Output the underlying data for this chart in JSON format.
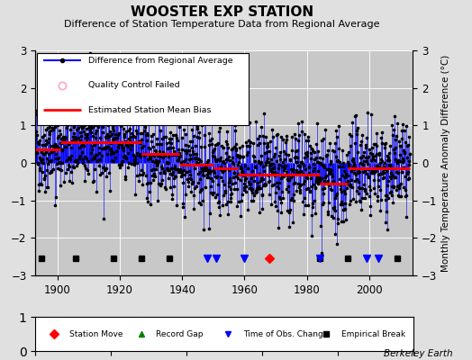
{
  "title": "WOOSTER EXP STATION",
  "subtitle": "Difference of Station Temperature Data from Regional Average",
  "ylabel": "Monthly Temperature Anomaly Difference (°C)",
  "ylim": [
    -3,
    3
  ],
  "xlim": [
    1893,
    2014
  ],
  "yticks": [
    -3,
    -2,
    -1,
    0,
    1,
    2,
    3
  ],
  "xticks": [
    1900,
    1920,
    1940,
    1960,
    1980,
    2000
  ],
  "background_color": "#e0e0e0",
  "plot_bg_color": "#c8c8c8",
  "grid_color": "#ffffff",
  "line_color": "#0000ff",
  "dot_color": "#000000",
  "bias_color": "#ff0000",
  "watermark": "Berkeley Earth",
  "seed": 42,
  "start_year": 1893,
  "end_year": 2013,
  "segment_bias": [
    0.35,
    0.55,
    0.25,
    -0.05,
    -0.15,
    -0.3,
    -0.55,
    -0.15
  ],
  "segment_breaks": [
    1893,
    1901,
    1927,
    1939,
    1950,
    1958,
    1984,
    1993,
    2013
  ],
  "empirical_breaks": [
    1895,
    1906,
    1918,
    1927,
    1936,
    1984,
    1993,
    2009
  ],
  "time_of_obs_changes": [
    1948,
    1951,
    1960,
    1984,
    1999,
    2003
  ],
  "station_moves": [
    1968
  ],
  "record_gaps": [],
  "marker_y": -2.55
}
